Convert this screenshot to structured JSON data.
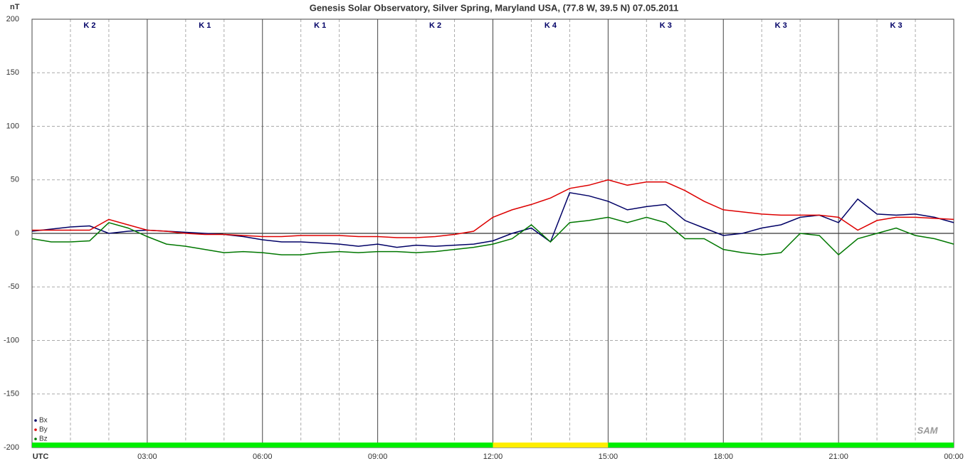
{
  "chart_data": {
    "type": "line",
    "title": "Genesis Solar Observatory, Silver Spring, Maryland USA, (77.8 W, 39.5 N)  07.05.2011",
    "y_label": "nT",
    "logo": "SAM",
    "xlim": [
      0,
      24
    ],
    "xticks": [
      {
        "value": 0,
        "label": "UTC"
      },
      {
        "value": 3,
        "label": "03:00"
      },
      {
        "value": 6,
        "label": "06:00"
      },
      {
        "value": 9,
        "label": "09:00"
      },
      {
        "value": 12,
        "label": "12:00"
      },
      {
        "value": 15,
        "label": "15:00"
      },
      {
        "value": 18,
        "label": "18:00"
      },
      {
        "value": 21,
        "label": "21:00"
      },
      {
        "value": 24,
        "label": "00:00"
      }
    ],
    "ylim": [
      -200,
      200
    ],
    "yticks": [
      -200,
      -150,
      -100,
      -50,
      0,
      50,
      100,
      150,
      200
    ],
    "grid": true,
    "legend": "bottom-left",
    "k_indices": [
      "K 2",
      "K 1",
      "K 1",
      "K 2",
      "K 4",
      "K 3",
      "K 3",
      "K 3"
    ],
    "daylight_bar": [
      {
        "start": 0,
        "end": 12,
        "color": "#00ee00"
      },
      {
        "start": 12,
        "end": 15,
        "color": "#ffee00"
      },
      {
        "start": 15,
        "end": 24,
        "color": "#00ee00"
      }
    ],
    "x": [
      0,
      0.5,
      1,
      1.5,
      2,
      2.5,
      3,
      3.5,
      4,
      4.5,
      5,
      5.5,
      6,
      6.5,
      7,
      7.5,
      8,
      8.5,
      9,
      9.5,
      10,
      10.5,
      11,
      11.5,
      12,
      12.5,
      13,
      13.5,
      14,
      14.5,
      15,
      15.5,
      16,
      16.5,
      17,
      17.5,
      18,
      18.5,
      19,
      19.5,
      20,
      20.5,
      21,
      21.5,
      22,
      22.5,
      23,
      23.5,
      24
    ],
    "series": [
      {
        "name": "Bx",
        "color": "#000066",
        "values": [
          2,
          4,
          6,
          7,
          0,
          2,
          3,
          2,
          1,
          0,
          -1,
          -3,
          -6,
          -8,
          -8,
          -9,
          -10,
          -12,
          -10,
          -13,
          -11,
          -12,
          -11,
          -10,
          -7,
          0,
          5,
          -8,
          38,
          35,
          30,
          22,
          25,
          27,
          12,
          5,
          -2,
          0,
          5,
          8,
          15,
          17,
          10,
          32,
          18,
          17,
          18,
          15,
          10
        ]
      },
      {
        "name": "By",
        "color": "#dd0000",
        "values": [
          3,
          3,
          3,
          3,
          13,
          8,
          3,
          2,
          0,
          -1,
          -1,
          -2,
          -3,
          -3,
          -2,
          -2,
          -2,
          -3,
          -3,
          -4,
          -4,
          -3,
          -1,
          2,
          15,
          22,
          27,
          33,
          42,
          45,
          50,
          45,
          48,
          48,
          40,
          30,
          22,
          20,
          18,
          17,
          17,
          17,
          15,
          3,
          12,
          15,
          15,
          14,
          13
        ]
      },
      {
        "name": "Bz",
        "color": "#007700",
        "values": [
          -5,
          -8,
          -8,
          -7,
          10,
          5,
          -3,
          -10,
          -12,
          -15,
          -18,
          -17,
          -18,
          -20,
          -20,
          -18,
          -17,
          -18,
          -17,
          -17,
          -18,
          -17,
          -15,
          -13,
          -10,
          -5,
          8,
          -8,
          10,
          12,
          15,
          10,
          15,
          10,
          -5,
          -5,
          -15,
          -18,
          -20,
          -18,
          0,
          -2,
          -20,
          -5,
          0,
          5,
          -2,
          -5,
          -10
        ]
      }
    ]
  }
}
